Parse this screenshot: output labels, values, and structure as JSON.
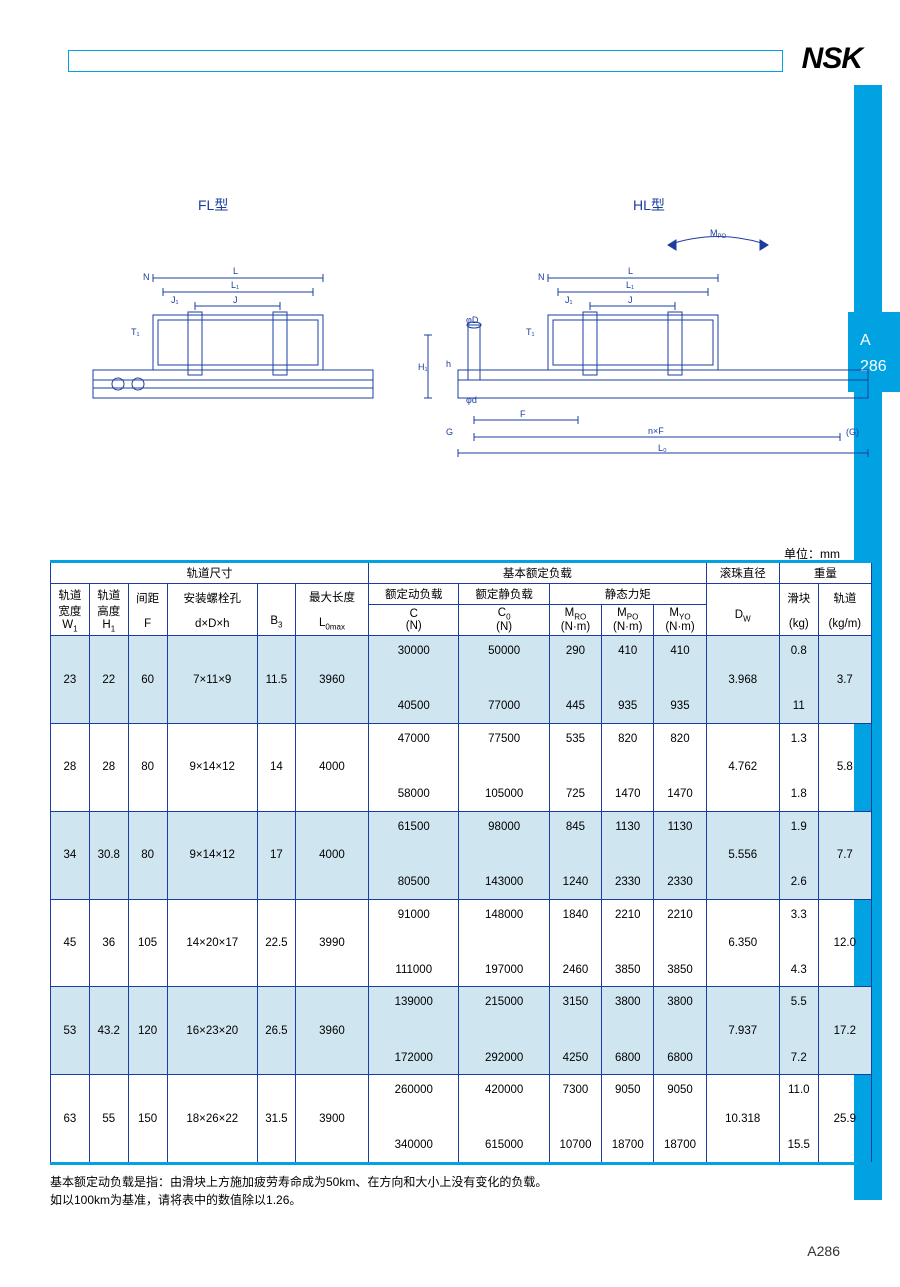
{
  "logo": "NSK",
  "side_tab": {
    "letter": "A",
    "num": "286"
  },
  "diagrams": {
    "left_label": "FL型",
    "right_label": "HL型",
    "stroke": "#1b3da0",
    "labels": [
      "L",
      "L₁",
      "J",
      "J₁",
      "N",
      "T₁",
      "M_PO",
      "H₁",
      "h",
      "φd",
      "φD",
      "G",
      "F",
      "n×F",
      "(G)",
      "L₀"
    ]
  },
  "unit": "单位：mm",
  "table": {
    "group_headers": [
      "轨道尺寸",
      "基本额定负载",
      "滚珠直径",
      "重量"
    ],
    "sub_headers": {
      "w1_l1": "轨道",
      "w1_l2": "宽度",
      "w1_u": "W",
      "w1_sub": "1",
      "h1_l1": "轨道",
      "h1_l2": "高度",
      "h1_u": "H",
      "h1_sub": "1",
      "f_l1": "间距",
      "f_u": "F",
      "dDh_l1": "安装螺栓孔",
      "dDh_u": "d×D×h",
      "b3_u": "B",
      "b3_sub": "3",
      "lmax_l1": "最大长度",
      "lmax_u": "L",
      "lmax_sub": "0max",
      "c_l1": "额定动负载",
      "c_u": "C",
      "c_unit": "(N)",
      "c0_l1": "额定静负载",
      "c0_u": "C",
      "c0_sub": "0",
      "c0_unit": "(N)",
      "moment_l1": "静态力矩",
      "mro_u": "M",
      "mro_sub": "RO",
      "m_unit": "(N·m)",
      "mpo_u": "M",
      "mpo_sub": "PO",
      "myo_u": "M",
      "myo_sub": "YO",
      "dw_u": "D",
      "dw_sub": "W",
      "block_l1": "滑块",
      "block_unit": "(kg)",
      "rail_l1": "轨道",
      "rail_unit": "(kg/m)"
    },
    "rows": [
      {
        "alt": true,
        "W1": "23",
        "H1": "22",
        "F": "60",
        "dDh": "7×11×9",
        "B3": "11.5",
        "Lmax": "3960",
        "C": [
          "30000",
          "40500"
        ],
        "C0": [
          "50000",
          "77000"
        ],
        "MRO": [
          "290",
          "445"
        ],
        "MPO": [
          "410",
          "935"
        ],
        "MYO": [
          "410",
          "935"
        ],
        "Dw": "3.968",
        "block": [
          "0.8",
          "11"
        ],
        "rail": "3.7"
      },
      {
        "alt": false,
        "W1": "28",
        "H1": "28",
        "F": "80",
        "dDh": "9×14×12",
        "B3": "14",
        "Lmax": "4000",
        "C": [
          "47000",
          "58000"
        ],
        "C0": [
          "77500",
          "105000"
        ],
        "MRO": [
          "535",
          "725"
        ],
        "MPO": [
          "820",
          "1470"
        ],
        "MYO": [
          "820",
          "1470"
        ],
        "Dw": "4.762",
        "block": [
          "1.3",
          "1.8"
        ],
        "rail": "5.8"
      },
      {
        "alt": true,
        "W1": "34",
        "H1": "30.8",
        "F": "80",
        "dDh": "9×14×12",
        "B3": "17",
        "Lmax": "4000",
        "C": [
          "61500",
          "80500"
        ],
        "C0": [
          "98000",
          "143000"
        ],
        "MRO": [
          "845",
          "1240"
        ],
        "MPO": [
          "1130",
          "2330"
        ],
        "MYO": [
          "1130",
          "2330"
        ],
        "Dw": "5.556",
        "block": [
          "1.9",
          "2.6"
        ],
        "rail": "7.7"
      },
      {
        "alt": false,
        "W1": "45",
        "H1": "36",
        "F": "105",
        "dDh": "14×20×17",
        "B3": "22.5",
        "Lmax": "3990",
        "C": [
          "91000",
          "111000"
        ],
        "C0": [
          "148000",
          "197000"
        ],
        "MRO": [
          "1840",
          "2460"
        ],
        "MPO": [
          "2210",
          "3850"
        ],
        "MYO": [
          "2210",
          "3850"
        ],
        "Dw": "6.350",
        "block": [
          "3.3",
          "4.3"
        ],
        "rail": "12.0"
      },
      {
        "alt": true,
        "W1": "53",
        "H1": "43.2",
        "F": "120",
        "dDh": "16×23×20",
        "B3": "26.5",
        "Lmax": "3960",
        "C": [
          "139000",
          "172000"
        ],
        "C0": [
          "215000",
          "292000"
        ],
        "MRO": [
          "3150",
          "4250"
        ],
        "MPO": [
          "3800",
          "6800"
        ],
        "MYO": [
          "3800",
          "6800"
        ],
        "Dw": "7.937",
        "block": [
          "5.5",
          "7.2"
        ],
        "rail": "17.2"
      },
      {
        "alt": false,
        "W1": "63",
        "H1": "55",
        "F": "150",
        "dDh": "18×26×22",
        "B3": "31.5",
        "Lmax": "3900",
        "C": [
          "260000",
          "340000"
        ],
        "C0": [
          "420000",
          "615000"
        ],
        "MRO": [
          "7300",
          "10700"
        ],
        "MPO": [
          "9050",
          "18700"
        ],
        "MYO": [
          "9050",
          "18700"
        ],
        "Dw": "10.318",
        "block": [
          "11.0",
          "15.5"
        ],
        "rail": "25.9"
      }
    ]
  },
  "footnotes": [
    "基本额定动负载是指：由滑块上方施加疲劳寿命成为50km、在方向和大小上没有变化的负载。",
    "如以100km为基准，请将表中的数值除以1.26。"
  ],
  "page_num": "A286",
  "colors": {
    "brand_blue": "#00a2e2",
    "line_blue": "#1b3da0",
    "row_alt": "#cfe5f0"
  }
}
